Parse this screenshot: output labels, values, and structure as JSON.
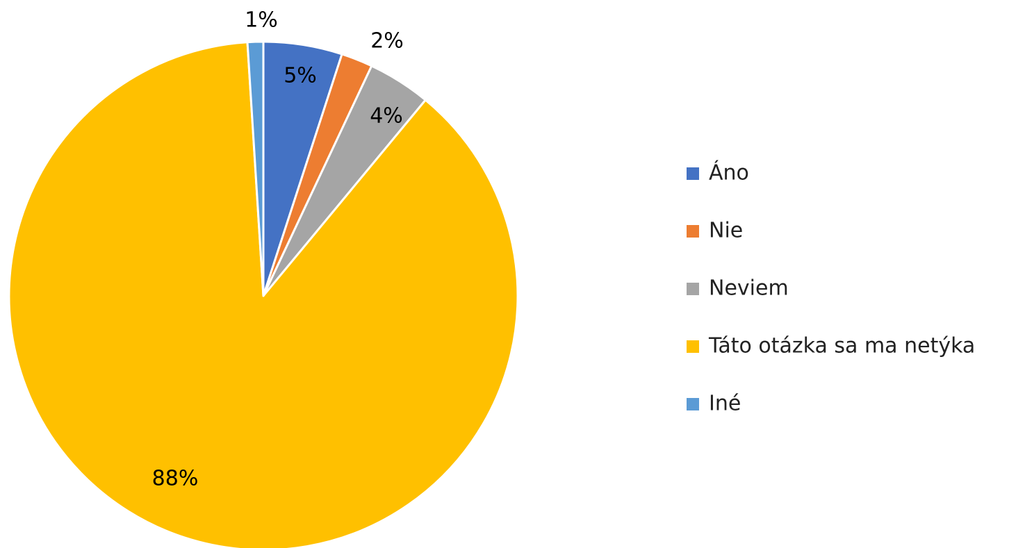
{
  "chart_data": {
    "type": "pie",
    "categories": [
      "Áno",
      "Nie",
      "Neviem",
      "Táto otázka sa ma netýka",
      "Iné"
    ],
    "values": [
      5,
      2,
      4,
      88,
      1
    ],
    "value_labels": [
      "5%",
      "2%",
      "4%",
      "88%",
      "1%"
    ],
    "colors": [
      "#4472c4",
      "#ed7d31",
      "#a5a5a5",
      "#ffc000",
      "#5b9bd5"
    ],
    "legend": "right"
  }
}
